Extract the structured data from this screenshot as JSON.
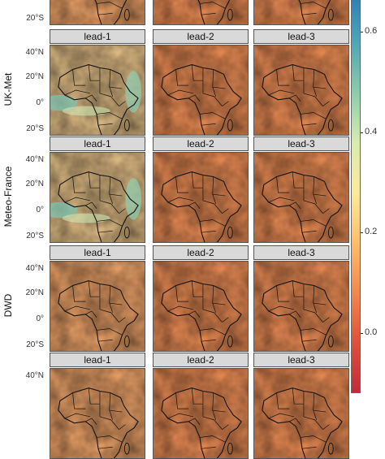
{
  "panel_labels": [
    "lead-1",
    "lead-2",
    "lead-3"
  ],
  "rows": [
    {
      "name": "",
      "partial": "top"
    },
    {
      "name": "UK-Met"
    },
    {
      "name": "Meteo-France"
    },
    {
      "name": "DWD"
    },
    {
      "name": "",
      "partial": "bottom"
    }
  ],
  "latitude_ticks": [
    "40°N",
    "20°N",
    "0°",
    "20°S"
  ],
  "colorbar": {
    "ticks": [
      "0.6",
      "0.4",
      "0.2",
      "0.0"
    ],
    "tick_values": [
      0.6,
      0.4,
      0.2,
      0.0
    ],
    "range": [
      -0.12,
      0.68
    ],
    "colors": [
      "#2c7bb6",
      "#4fa6b8",
      "#8ccda9",
      "#d8ecb0",
      "#fee99a",
      "#fdbe6b",
      "#f4874e",
      "#e0503a",
      "#c42a3a"
    ]
  }
}
